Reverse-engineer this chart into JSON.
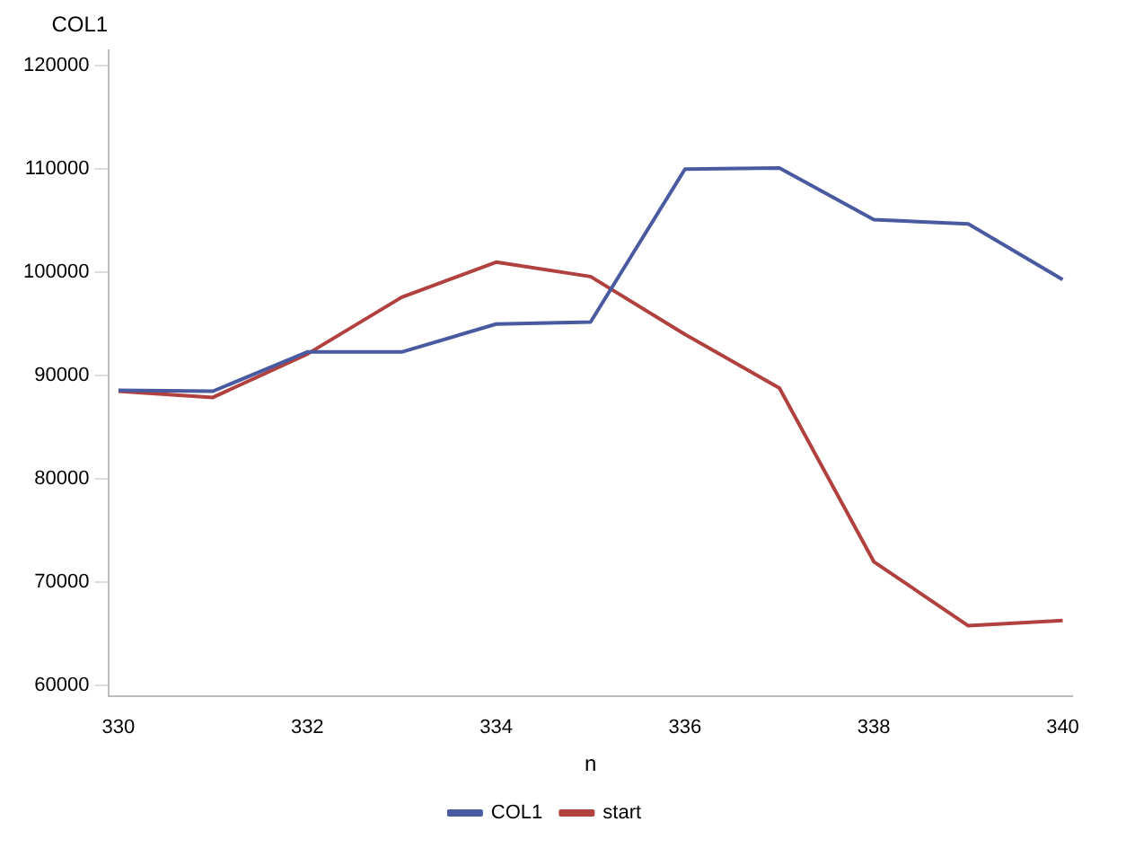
{
  "chart_data": {
    "type": "line",
    "ylabel": "COL1",
    "xlabel": "n",
    "x": [
      330,
      331,
      332,
      333,
      334,
      335,
      336,
      337,
      338,
      339,
      340
    ],
    "series": [
      {
        "name": "COL1",
        "color": "#4a5aa0",
        "values": [
          88600,
          88500,
          92300,
          92300,
          95000,
          95200,
          110000,
          110100,
          105100,
          104700,
          99300
        ]
      },
      {
        "name": "start",
        "color": "#b0413e",
        "values": [
          88500,
          87900,
          92100,
          97600,
          101000,
          99600,
          94000,
          88800,
          72000,
          65800,
          66300
        ]
      }
    ],
    "xlim": [
      329.9,
      340.1
    ],
    "xticks": [
      330,
      332,
      334,
      336,
      338,
      340
    ],
    "ylim": [
      59000,
      121500
    ],
    "yticks": [
      60000,
      70000,
      80000,
      90000,
      100000,
      110000,
      120000
    ],
    "grid": false,
    "legend": "bottom",
    "marker": "none",
    "line_style": "solid"
  }
}
